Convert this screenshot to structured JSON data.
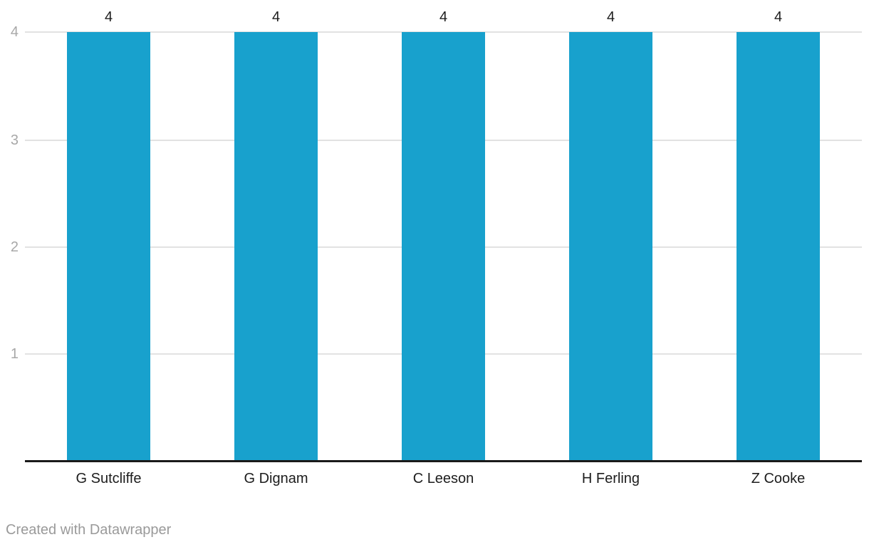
{
  "chart_data": {
    "type": "bar",
    "title": "",
    "xlabel": "",
    "ylabel": "",
    "categories": [
      "G Sutcliffe",
      "G Dignam",
      "C Leeson",
      "H Ferling",
      "Z Cooke"
    ],
    "values": [
      4,
      4,
      4,
      4,
      4
    ],
    "value_labels": [
      "4",
      "4",
      "4",
      "4",
      "4"
    ],
    "ylim": [
      0,
      4
    ],
    "y_ticks_desc": [
      "4",
      "3",
      "2",
      "1"
    ],
    "grid": true,
    "legend": "none",
    "bar_color": "#18a1cd",
    "colors": {
      "grid_line": "#e2e2e2",
      "axis_line": "#1a1a1a",
      "tick_label": "#a8a8a8",
      "data_label": "#1d1d1d",
      "footer_text": "#9a9a9a"
    }
  },
  "footer": {
    "text": "Created with Datawrapper"
  }
}
